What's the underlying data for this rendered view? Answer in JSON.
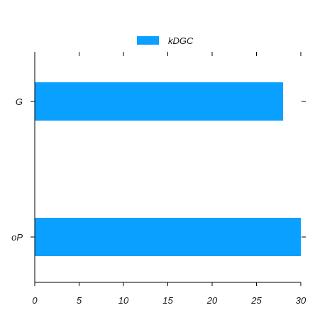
{
  "chart_data": {
    "type": "bar",
    "orientation": "horizontal",
    "categories": [
      "G",
      "oP"
    ],
    "series": [
      {
        "name": "kDGC",
        "values": [
          28,
          30
        ]
      }
    ],
    "xlim": [
      0,
      30
    ],
    "xticks": [
      0,
      5,
      10,
      15,
      20,
      25,
      30
    ],
    "grid": false,
    "legend_position": "top-center"
  },
  "colors": {
    "bar": "#0aa0ff",
    "axis": "#000000",
    "text": "#1a1a1a"
  }
}
